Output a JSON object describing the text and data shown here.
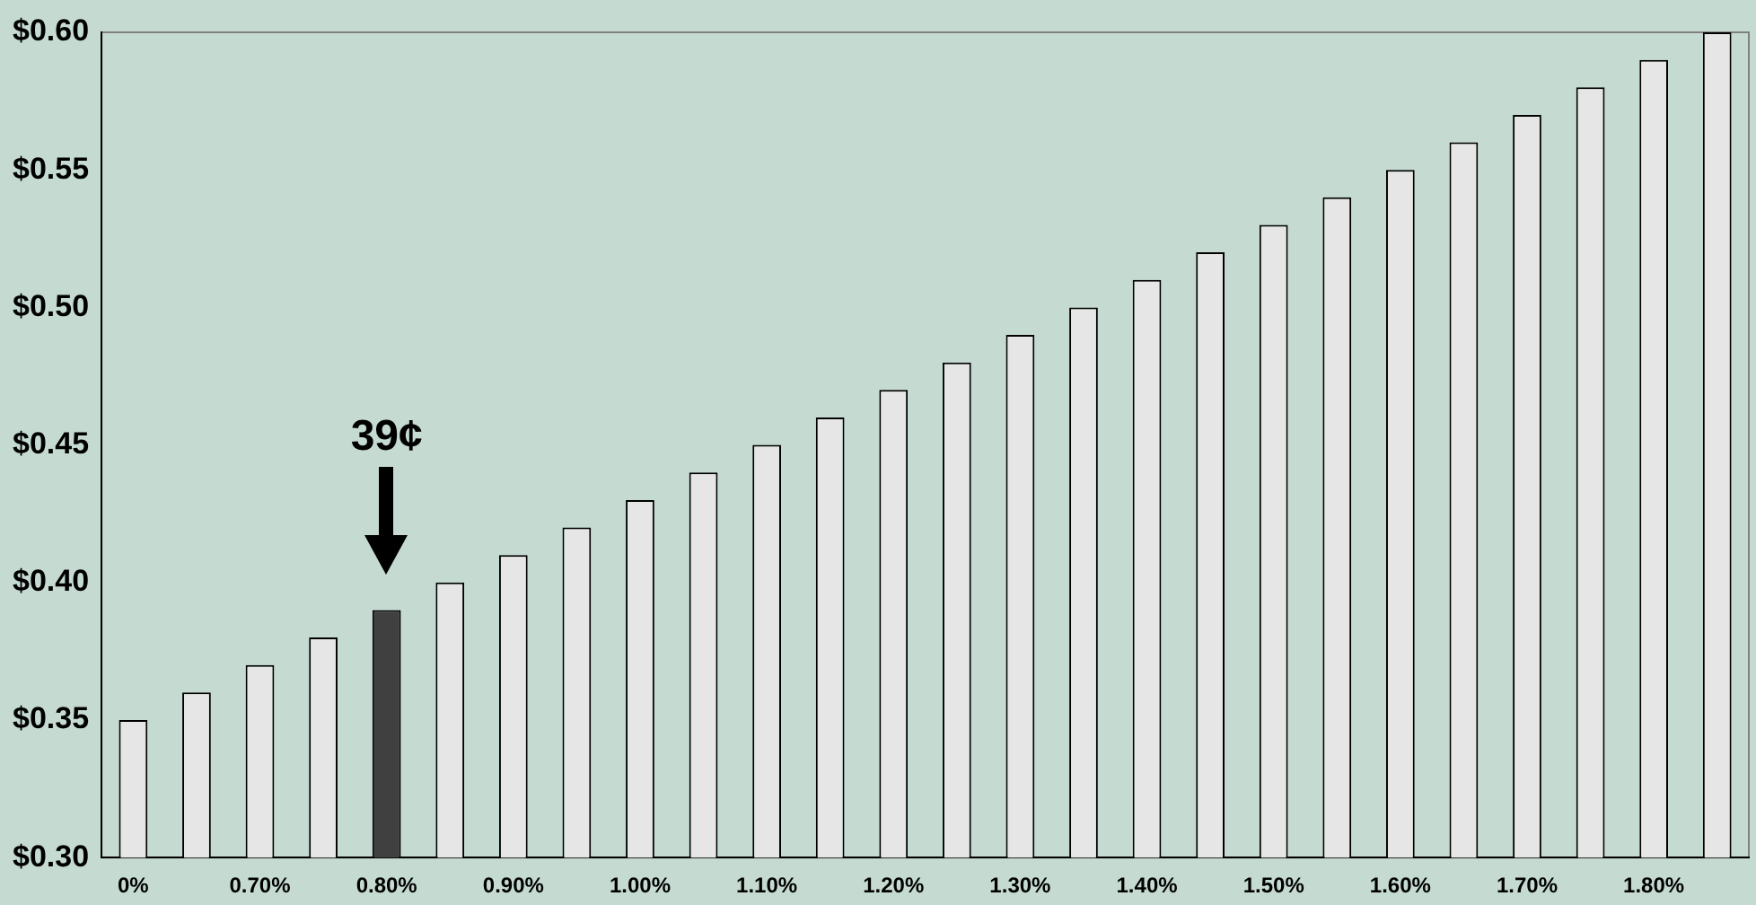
{
  "chart_data": {
    "type": "bar",
    "categories": [
      "0%",
      null,
      "0.70%",
      null,
      "0.80%",
      null,
      "0.90%",
      null,
      "1.00%",
      null,
      "1.10%",
      null,
      "1.20%",
      null,
      "1.30%",
      null,
      "1.40%",
      null,
      "1.50%",
      null,
      "1.60%",
      null,
      "1.70%",
      null,
      "1.80%",
      null
    ],
    "values": [
      0.35,
      0.36,
      0.37,
      0.38,
      0.39,
      0.4,
      0.41,
      0.42,
      0.43,
      0.44,
      0.45,
      0.46,
      0.47,
      0.48,
      0.49,
      0.5,
      0.51,
      0.52,
      0.53,
      0.54,
      0.55,
      0.56,
      0.57,
      0.58,
      0.59,
      0.6
    ],
    "colors": [
      "#e6e6e6",
      "#e6e6e6",
      "#e6e6e6",
      "#e6e6e6",
      "#404040",
      "#e6e6e6",
      "#e6e6e6",
      "#e6e6e6",
      "#e6e6e6",
      "#e6e6e6",
      "#e6e6e6",
      "#e6e6e6",
      "#e6e6e6",
      "#e6e6e6",
      "#e6e6e6",
      "#e6e6e6",
      "#e6e6e6",
      "#e6e6e6",
      "#e6e6e6",
      "#e6e6e6",
      "#e6e6e6",
      "#e6e6e6",
      "#e6e6e6",
      "#e6e6e6",
      "#e6e6e6",
      "#e6e6e6"
    ],
    "ylim": [
      0.3,
      0.6
    ],
    "yticks": [
      {
        "value": 0.3,
        "label": "$0.30"
      },
      {
        "value": 0.35,
        "label": "$0.35"
      },
      {
        "value": 0.4,
        "label": "$0.40"
      },
      {
        "value": 0.45,
        "label": "$0.45"
      },
      {
        "value": 0.5,
        "label": "$0.50"
      },
      {
        "value": 0.55,
        "label": "$0.55"
      },
      {
        "value": 0.6,
        "label": "$0.60"
      }
    ],
    "annotations": [
      "39¢"
    ],
    "grid": false,
    "legend": false
  }
}
